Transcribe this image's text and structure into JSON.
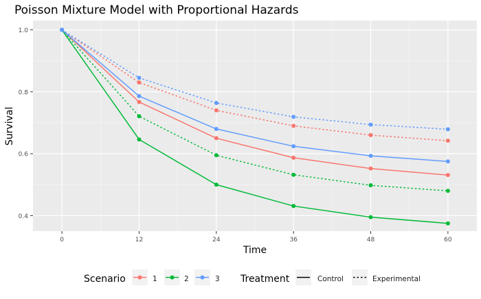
{
  "chart_data": {
    "type": "line",
    "title": "Poisson Mixture Model with Proportional Hazards",
    "xlabel": "Time",
    "ylabel": "Survival",
    "x": [
      0,
      12,
      24,
      36,
      48,
      60
    ],
    "xlim": [
      -4.5,
      64.5
    ],
    "ylim": [
      0.35,
      1.03
    ],
    "xticks": [
      0,
      12,
      24,
      36,
      48,
      60
    ],
    "yticks": [
      0.4,
      0.6,
      0.8,
      1.0
    ],
    "ytick_labels": [
      "0.4",
      "0.6",
      "0.8",
      "1.0"
    ],
    "grid": true,
    "legend_position": "bottom",
    "series": [
      {
        "scenario": "1",
        "treatment": "Control",
        "values": [
          1.0,
          0.767,
          0.65,
          0.587,
          0.552,
          0.531
        ]
      },
      {
        "scenario": "1",
        "treatment": "Experimental",
        "values": [
          1.0,
          0.83,
          0.74,
          0.69,
          0.66,
          0.642
        ]
      },
      {
        "scenario": "2",
        "treatment": "Control",
        "values": [
          1.0,
          0.646,
          0.5,
          0.431,
          0.395,
          0.375
        ]
      },
      {
        "scenario": "2",
        "treatment": "Experimental",
        "values": [
          1.0,
          0.721,
          0.595,
          0.532,
          0.498,
          0.48
        ]
      },
      {
        "scenario": "3",
        "treatment": "Control",
        "values": [
          1.0,
          0.786,
          0.68,
          0.624,
          0.593,
          0.575
        ]
      },
      {
        "scenario": "3",
        "treatment": "Experimental",
        "values": [
          1.0,
          0.845,
          0.764,
          0.719,
          0.694,
          0.679
        ]
      }
    ],
    "legend": {
      "scenario_title": "Scenario",
      "scenario_items": [
        {
          "label": "1",
          "color": "#F8766D"
        },
        {
          "label": "2",
          "color": "#00BA38"
        },
        {
          "label": "3",
          "color": "#619CFF"
        }
      ],
      "treatment_title": "Treatment",
      "treatment_items": [
        {
          "label": "Control",
          "linetype": "solid"
        },
        {
          "label": "Experimental",
          "linetype": "dotted"
        }
      ]
    },
    "colors": {
      "1": "#F8766D",
      "2": "#00BA38",
      "3": "#619CFF",
      "panel_bg": "#EBEBEB",
      "grid": "#FFFFFF"
    }
  }
}
